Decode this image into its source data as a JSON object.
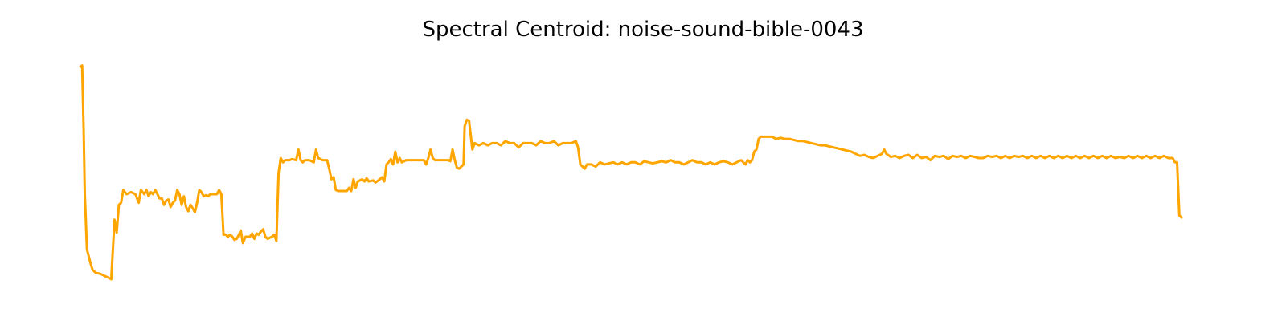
{
  "chart_data": {
    "type": "line",
    "title": "Spectral Centroid: noise-sound-bible-0043",
    "axes": "off",
    "grid": false,
    "xlim": [
      0,
      500
    ],
    "ylim": [
      0,
      100
    ],
    "series": [
      {
        "color": "#ffa500",
        "points": [
          [
            0,
            100
          ],
          [
            0.8,
            100.5
          ],
          [
            1.5,
            70
          ],
          [
            2,
            40
          ],
          [
            3,
            14
          ],
          [
            4.5,
            8
          ],
          [
            5.5,
            4.5
          ],
          [
            7,
            3
          ],
          [
            9,
            2.6
          ],
          [
            11,
            1.6
          ],
          [
            13,
            0.6
          ],
          [
            14,
            0
          ],
          [
            15.5,
            28
          ],
          [
            16.5,
            22
          ],
          [
            17.5,
            35
          ],
          [
            18.5,
            36
          ],
          [
            19.5,
            42
          ],
          [
            21,
            40
          ],
          [
            23,
            41
          ],
          [
            25,
            40
          ],
          [
            26.5,
            36
          ],
          [
            27.5,
            42
          ],
          [
            29,
            40
          ],
          [
            30,
            42
          ],
          [
            31,
            39
          ],
          [
            32,
            41
          ],
          [
            33,
            40
          ],
          [
            34,
            42
          ],
          [
            35,
            40
          ],
          [
            36,
            38
          ],
          [
            37,
            38
          ],
          [
            38,
            35
          ],
          [
            39,
            37
          ],
          [
            40,
            37.5
          ],
          [
            41,
            34
          ],
          [
            42,
            36
          ],
          [
            43,
            37
          ],
          [
            44,
            42
          ],
          [
            45,
            40
          ],
          [
            46,
            35
          ],
          [
            47,
            39
          ],
          [
            48,
            34
          ],
          [
            49,
            32
          ],
          [
            50,
            35
          ],
          [
            51,
            33.5
          ],
          [
            52,
            31.5
          ],
          [
            53,
            36
          ],
          [
            54,
            42
          ],
          [
            55,
            41
          ],
          [
            56,
            39
          ],
          [
            57,
            39.5
          ],
          [
            58,
            39
          ],
          [
            59,
            40
          ],
          [
            60,
            40
          ],
          [
            61,
            40
          ],
          [
            62,
            40
          ],
          [
            63,
            42
          ],
          [
            64,
            40
          ],
          [
            65,
            21
          ],
          [
            66,
            21
          ],
          [
            67,
            20
          ],
          [
            68,
            21
          ],
          [
            69,
            20
          ],
          [
            70,
            18.5
          ],
          [
            71,
            19
          ],
          [
            72,
            21
          ],
          [
            72.8,
            23
          ],
          [
            73.8,
            17
          ],
          [
            75,
            20
          ],
          [
            77,
            20
          ],
          [
            78,
            21.5
          ],
          [
            79,
            19
          ],
          [
            80,
            21.5
          ],
          [
            81,
            21
          ],
          [
            82,
            22.5
          ],
          [
            83,
            23.5
          ],
          [
            84,
            20
          ],
          [
            85,
            19
          ],
          [
            87,
            20
          ],
          [
            88,
            21
          ],
          [
            89,
            18
          ],
          [
            90,
            50
          ],
          [
            91,
            57
          ],
          [
            92,
            55
          ],
          [
            93,
            56
          ],
          [
            95,
            56
          ],
          [
            96,
            56.5
          ],
          [
            98,
            56
          ],
          [
            99,
            61
          ],
          [
            100,
            56
          ],
          [
            101,
            55
          ],
          [
            102,
            56
          ],
          [
            104,
            56
          ],
          [
            106,
            55
          ],
          [
            107,
            61
          ],
          [
            108,
            57
          ],
          [
            110,
            56
          ],
          [
            112,
            56
          ],
          [
            113,
            52
          ],
          [
            114,
            47
          ],
          [
            115,
            48
          ],
          [
            116,
            42
          ],
          [
            117,
            41.5
          ],
          [
            119,
            41.5
          ],
          [
            121,
            41.5
          ],
          [
            122,
            43
          ],
          [
            123,
            41.5
          ],
          [
            124,
            47
          ],
          [
            125,
            43
          ],
          [
            126,
            46
          ],
          [
            128,
            47
          ],
          [
            129,
            46
          ],
          [
            130,
            47.5
          ],
          [
            131,
            46
          ],
          [
            133,
            46.5
          ],
          [
            134,
            45.5
          ],
          [
            136,
            47
          ],
          [
            137,
            48
          ],
          [
            138,
            46
          ],
          [
            139,
            54
          ],
          [
            140,
            55
          ],
          [
            141,
            56.5
          ],
          [
            142,
            54
          ],
          [
            143,
            60
          ],
          [
            144,
            55
          ],
          [
            145,
            57
          ],
          [
            146,
            55
          ],
          [
            148,
            56
          ],
          [
            150,
            56
          ],
          [
            152,
            56
          ],
          [
            154,
            56
          ],
          [
            156,
            56
          ],
          [
            157,
            54
          ],
          [
            158,
            57
          ],
          [
            159,
            61
          ],
          [
            160,
            57
          ],
          [
            161,
            56
          ],
          [
            163,
            56
          ],
          [
            165,
            56
          ],
          [
            167,
            56
          ],
          [
            168,
            55.5
          ],
          [
            169,
            61
          ],
          [
            170,
            56
          ],
          [
            171,
            52.5
          ],
          [
            172,
            52
          ],
          [
            173,
            53
          ],
          [
            174,
            54
          ],
          [
            174.5,
            72
          ],
          [
            175.5,
            75
          ],
          [
            176.5,
            74.5
          ],
          [
            177,
            70
          ],
          [
            178,
            61
          ],
          [
            179,
            64
          ],
          [
            181,
            63
          ],
          [
            183,
            64
          ],
          [
            185,
            63
          ],
          [
            187,
            64
          ],
          [
            189,
            64
          ],
          [
            191,
            63
          ],
          [
            193,
            65
          ],
          [
            195,
            64
          ],
          [
            197,
            64
          ],
          [
            199,
            62
          ],
          [
            201,
            64
          ],
          [
            203,
            64
          ],
          [
            205,
            64
          ],
          [
            207,
            63
          ],
          [
            209,
            65
          ],
          [
            211,
            64
          ],
          [
            213,
            64
          ],
          [
            215,
            65
          ],
          [
            217,
            63
          ],
          [
            219,
            64
          ],
          [
            221,
            64
          ],
          [
            223,
            64
          ],
          [
            225,
            65
          ],
          [
            226,
            62
          ],
          [
            227,
            54
          ],
          [
            228,
            53
          ],
          [
            229,
            52
          ],
          [
            230,
            54
          ],
          [
            232,
            54
          ],
          [
            234,
            53
          ],
          [
            236,
            55
          ],
          [
            238,
            54
          ],
          [
            240,
            54.5
          ],
          [
            242,
            55
          ],
          [
            244,
            54
          ],
          [
            246,
            55
          ],
          [
            248,
            54
          ],
          [
            250,
            55
          ],
          [
            252,
            55
          ],
          [
            254,
            54
          ],
          [
            256,
            55.5
          ],
          [
            258,
            55
          ],
          [
            260,
            54.5
          ],
          [
            262,
            55
          ],
          [
            264,
            55.5
          ],
          [
            266,
            55
          ],
          [
            268,
            56
          ],
          [
            270,
            55
          ],
          [
            272,
            55
          ],
          [
            274,
            54
          ],
          [
            276,
            55
          ],
          [
            278,
            56
          ],
          [
            280,
            55
          ],
          [
            282,
            55
          ],
          [
            284,
            54
          ],
          [
            286,
            55
          ],
          [
            288,
            54
          ],
          [
            290,
            55
          ],
          [
            292,
            55.5
          ],
          [
            294,
            55
          ],
          [
            296,
            54
          ],
          [
            298,
            55
          ],
          [
            300,
            56
          ],
          [
            302,
            54
          ],
          [
            303,
            56
          ],
          [
            304,
            55
          ],
          [
            305,
            56
          ],
          [
            306,
            60
          ],
          [
            307,
            61
          ],
          [
            308,
            66
          ],
          [
            309,
            67
          ],
          [
            310,
            67
          ],
          [
            312,
            67
          ],
          [
            314,
            67
          ],
          [
            316,
            66
          ],
          [
            318,
            66.5
          ],
          [
            320,
            66
          ],
          [
            322,
            66
          ],
          [
            324,
            65.5
          ],
          [
            326,
            65
          ],
          [
            328,
            65
          ],
          [
            330,
            64.5
          ],
          [
            332,
            64
          ],
          [
            334,
            63.5
          ],
          [
            336,
            63
          ],
          [
            338,
            63
          ],
          [
            340,
            62.5
          ],
          [
            342,
            62
          ],
          [
            344,
            61.5
          ],
          [
            346,
            61
          ],
          [
            348,
            60.5
          ],
          [
            350,
            60
          ],
          [
            352,
            59
          ],
          [
            354,
            58
          ],
          [
            356,
            58.5
          ],
          [
            358,
            57.5
          ],
          [
            360,
            57
          ],
          [
            362,
            58
          ],
          [
            364,
            59
          ],
          [
            365,
            61
          ],
          [
            366,
            59
          ],
          [
            368,
            57.5
          ],
          [
            370,
            58
          ],
          [
            372,
            57
          ],
          [
            374,
            58
          ],
          [
            376,
            58.5
          ],
          [
            378,
            57
          ],
          [
            380,
            58.5
          ],
          [
            382,
            57
          ],
          [
            384,
            57.5
          ],
          [
            386,
            56
          ],
          [
            388,
            58
          ],
          [
            390,
            57.5
          ],
          [
            392,
            58
          ],
          [
            394,
            56.5
          ],
          [
            396,
            58
          ],
          [
            398,
            57.5
          ],
          [
            400,
            58
          ],
          [
            402,
            57
          ],
          [
            404,
            58
          ],
          [
            406,
            57.5
          ],
          [
            408,
            57
          ],
          [
            410,
            57
          ],
          [
            412,
            58
          ],
          [
            414,
            57.5
          ],
          [
            416,
            58
          ],
          [
            418,
            57
          ],
          [
            420,
            58
          ],
          [
            422,
            57
          ],
          [
            424,
            58
          ],
          [
            426,
            57.5
          ],
          [
            428,
            58
          ],
          [
            430,
            57
          ],
          [
            432,
            58
          ],
          [
            434,
            57
          ],
          [
            436,
            58
          ],
          [
            438,
            57
          ],
          [
            440,
            58
          ],
          [
            442,
            57
          ],
          [
            444,
            58
          ],
          [
            446,
            57
          ],
          [
            448,
            58
          ],
          [
            450,
            57
          ],
          [
            452,
            58
          ],
          [
            454,
            57
          ],
          [
            456,
            58
          ],
          [
            458,
            57
          ],
          [
            460,
            58
          ],
          [
            462,
            57
          ],
          [
            464,
            58
          ],
          [
            466,
            57
          ],
          [
            468,
            58
          ],
          [
            470,
            57
          ],
          [
            472,
            57.5
          ],
          [
            474,
            57
          ],
          [
            476,
            58
          ],
          [
            478,
            57
          ],
          [
            480,
            58
          ],
          [
            482,
            57
          ],
          [
            484,
            58
          ],
          [
            486,
            57
          ],
          [
            488,
            58
          ],
          [
            490,
            57
          ],
          [
            492,
            58
          ],
          [
            494,
            57
          ],
          [
            496,
            57
          ],
          [
            497,
            55
          ],
          [
            498,
            55
          ],
          [
            499,
            30
          ],
          [
            500,
            29
          ]
        ]
      }
    ]
  }
}
